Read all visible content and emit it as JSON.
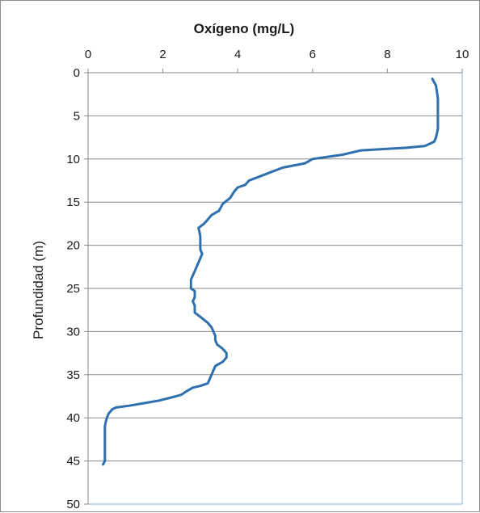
{
  "chart_data": {
    "type": "line",
    "title": "Oxígeno (mg/L)",
    "xlabel": "Oxígeno (mg/L)",
    "ylabel": "Profundidad (m)",
    "xlim": [
      0,
      10
    ],
    "ylim": [
      0,
      50
    ],
    "y_inverted": true,
    "x_axis_position": "top",
    "x_ticks": [
      "0",
      "2",
      "4",
      "6",
      "8",
      "10"
    ],
    "y_ticks": [
      "0",
      "5",
      "10",
      "15",
      "20",
      "25",
      "30",
      "35",
      "40",
      "45",
      "50"
    ],
    "grid": "horizontal",
    "series_color": "#2e6fad",
    "series": [
      {
        "points": [
          [
            9.2,
            0.7
          ],
          [
            9.3,
            1.5
          ],
          [
            9.35,
            3
          ],
          [
            9.35,
            5
          ],
          [
            9.35,
            6.5
          ],
          [
            9.3,
            7.5
          ],
          [
            9.25,
            8
          ],
          [
            9.0,
            8.5
          ],
          [
            8.5,
            8.7
          ],
          [
            7.3,
            9.0
          ],
          [
            6.8,
            9.5
          ],
          [
            6.0,
            10.0
          ],
          [
            5.8,
            10.5
          ],
          [
            5.2,
            11.0
          ],
          [
            4.9,
            11.5
          ],
          [
            4.6,
            12.0
          ],
          [
            4.3,
            12.5
          ],
          [
            4.2,
            13.0
          ],
          [
            4.0,
            13.3
          ],
          [
            3.9,
            13.8
          ],
          [
            3.8,
            14.5
          ],
          [
            3.6,
            15.2
          ],
          [
            3.5,
            16.0
          ],
          [
            3.3,
            16.5
          ],
          [
            3.2,
            17.0
          ],
          [
            3.1,
            17.5
          ],
          [
            2.95,
            18.0
          ],
          [
            2.98,
            18.5
          ],
          [
            3.0,
            19.0
          ],
          [
            3.0,
            19.8
          ],
          [
            3.0,
            20.5
          ],
          [
            3.05,
            21.0
          ],
          [
            3.0,
            21.5
          ],
          [
            2.95,
            22.0
          ],
          [
            2.9,
            22.5
          ],
          [
            2.85,
            23.0
          ],
          [
            2.8,
            23.5
          ],
          [
            2.75,
            24.0
          ],
          [
            2.75,
            25.0
          ],
          [
            2.85,
            25.3
          ],
          [
            2.85,
            26.0
          ],
          [
            2.8,
            26.5
          ],
          [
            2.85,
            27.0
          ],
          [
            2.85,
            27.8
          ],
          [
            3.0,
            28.3
          ],
          [
            3.2,
            29.0
          ],
          [
            3.3,
            29.5
          ],
          [
            3.35,
            30.0
          ],
          [
            3.4,
            30.5
          ],
          [
            3.4,
            31.0
          ],
          [
            3.45,
            31.5
          ],
          [
            3.6,
            32.0
          ],
          [
            3.7,
            32.5
          ],
          [
            3.7,
            33.0
          ],
          [
            3.6,
            33.5
          ],
          [
            3.4,
            34.0
          ],
          [
            3.35,
            34.5
          ],
          [
            3.3,
            35.0
          ],
          [
            3.25,
            35.5
          ],
          [
            3.2,
            36.0
          ],
          [
            3.0,
            36.3
          ],
          [
            2.8,
            36.5
          ],
          [
            2.6,
            37.0
          ],
          [
            2.5,
            37.3
          ],
          [
            2.35,
            37.5
          ],
          [
            1.9,
            38.0
          ],
          [
            1.5,
            38.3
          ],
          [
            1.1,
            38.6
          ],
          [
            0.75,
            38.8
          ],
          [
            0.65,
            39.0
          ],
          [
            0.55,
            39.5
          ],
          [
            0.5,
            40.0
          ],
          [
            0.47,
            40.5
          ],
          [
            0.45,
            41.0
          ],
          [
            0.45,
            42.0
          ],
          [
            0.45,
            43.0
          ],
          [
            0.45,
            44.0
          ],
          [
            0.45,
            45.0
          ],
          [
            0.4,
            45.4
          ]
        ]
      }
    ]
  }
}
